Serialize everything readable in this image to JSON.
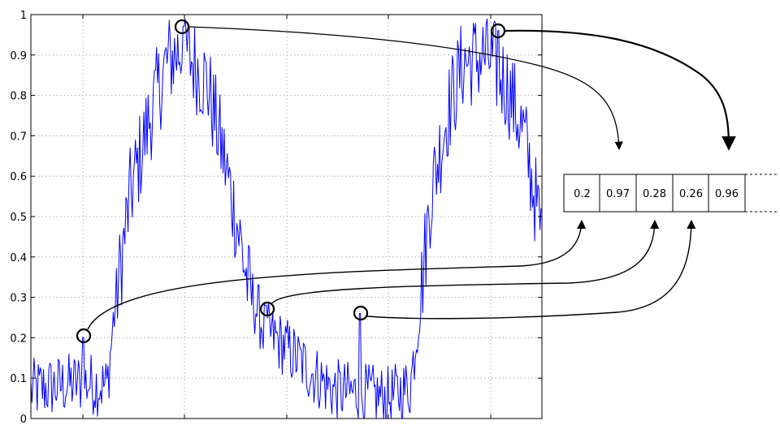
{
  "chart_data": {
    "type": "line",
    "title": "",
    "xlabel": "",
    "ylabel": "",
    "ylim": [
      0,
      1
    ],
    "yticks": [
      "0",
      "0.1",
      "0.2",
      "0.3",
      "0.4",
      "0.5",
      "0.6",
      "0.7",
      "0.8",
      "0.9",
      "1"
    ],
    "grid": true,
    "series": [
      {
        "color": "#0000ff",
        "shape": "noisy periodic signal: low noise near 0.05–0.15, rising to a peak near 0.97, falling to a trough near 0.05, rising to a second peak near 0.96",
        "y_approx": [
          0.08,
          0.1,
          0.05,
          0.12,
          0.2,
          0.1,
          0.35,
          0.55,
          0.7,
          0.85,
          0.97,
          0.85,
          0.72,
          0.55,
          0.4,
          0.28,
          0.22,
          0.15,
          0.1,
          0.08,
          0.26,
          0.12,
          0.1,
          0.45,
          0.7,
          0.88,
          0.96,
          0.8,
          0.6,
          0.45
        ]
      }
    ],
    "highlighted_points": [
      {
        "label": "0.2",
        "y": 0.2
      },
      {
        "label": "0.97",
        "y": 0.97
      },
      {
        "label": "0.28",
        "y": 0.28
      },
      {
        "label": "0.26",
        "y": 0.26
      },
      {
        "label": "0.96",
        "y": 0.96
      }
    ],
    "buffer_cells": [
      "0.2",
      "0.97",
      "0.28",
      "0.26",
      "0.96"
    ]
  },
  "colors": {
    "signal": "#0000ff",
    "grid": "#b0b0b0",
    "axis": "#000000",
    "annotation": "#000000"
  }
}
